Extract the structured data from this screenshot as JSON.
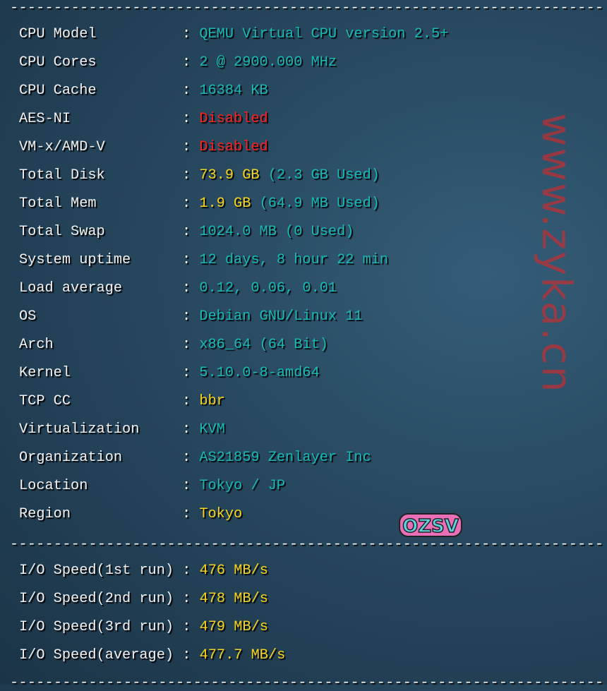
{
  "separator": "--------------------------------------------------------------------",
  "system_info": [
    {
      "label": "CPU Model",
      "value": "QEMU Virtual CPU version 2.5+",
      "color": "cyan"
    },
    {
      "label": "CPU Cores",
      "value": "2 @ 2900.000 MHz",
      "color": "cyan"
    },
    {
      "label": "CPU Cache",
      "value": "16384 KB",
      "color": "cyan"
    },
    {
      "label": "AES-NI",
      "value": "Disabled",
      "color": "red"
    },
    {
      "label": "VM-x/AMD-V",
      "value": "Disabled",
      "color": "red"
    },
    {
      "label": "Total Disk",
      "value": "73.9 GB",
      "extra": " (2.3 GB Used)",
      "color": "yellow"
    },
    {
      "label": "Total Mem",
      "value": "1.9 GB",
      "extra": " (64.9 MB Used)",
      "color": "yellow"
    },
    {
      "label": "Total Swap",
      "value": "1024.0 MB (0 Used)",
      "color": "cyan"
    },
    {
      "label": "System uptime",
      "value": "12 days, 8 hour 22 min",
      "color": "cyan"
    },
    {
      "label": "Load average",
      "value": "0.12, 0.06, 0.01",
      "color": "cyan"
    },
    {
      "label": "OS",
      "value": "Debian GNU/Linux 11",
      "color": "cyan"
    },
    {
      "label": "Arch",
      "value": "x86_64 (64 Bit)",
      "color": "cyan"
    },
    {
      "label": "Kernel",
      "value": "5.10.0-8-amd64",
      "color": "cyan"
    },
    {
      "label": "TCP CC",
      "value": "bbr",
      "color": "yellow"
    },
    {
      "label": "Virtualization",
      "value": "KVM",
      "color": "cyan"
    },
    {
      "label": "Organization",
      "value": "AS21859 Zenlayer Inc",
      "color": "cyan"
    },
    {
      "label": "Location",
      "value": "Tokyo / JP",
      "color": "cyan"
    },
    {
      "label": "Region",
      "value": "Tokyo",
      "color": "yellow"
    }
  ],
  "io_speed": [
    {
      "label": "I/O Speed(1st run)",
      "value": "476 MB/s"
    },
    {
      "label": "I/O Speed(2nd run)",
      "value": "478 MB/s"
    },
    {
      "label": "I/O Speed(3rd run)",
      "value": "479 MB/s"
    },
    {
      "label": "I/O Speed(average)",
      "value": "477.7 MB/s"
    }
  ],
  "colon": ": ",
  "watermark": "www.zyka.cn",
  "logo_text": "OZSV",
  "colors": {
    "cyan": "#19b8b4",
    "red": "#ff1f1f",
    "yellow": "#f7d51c",
    "background": "#27485f"
  }
}
